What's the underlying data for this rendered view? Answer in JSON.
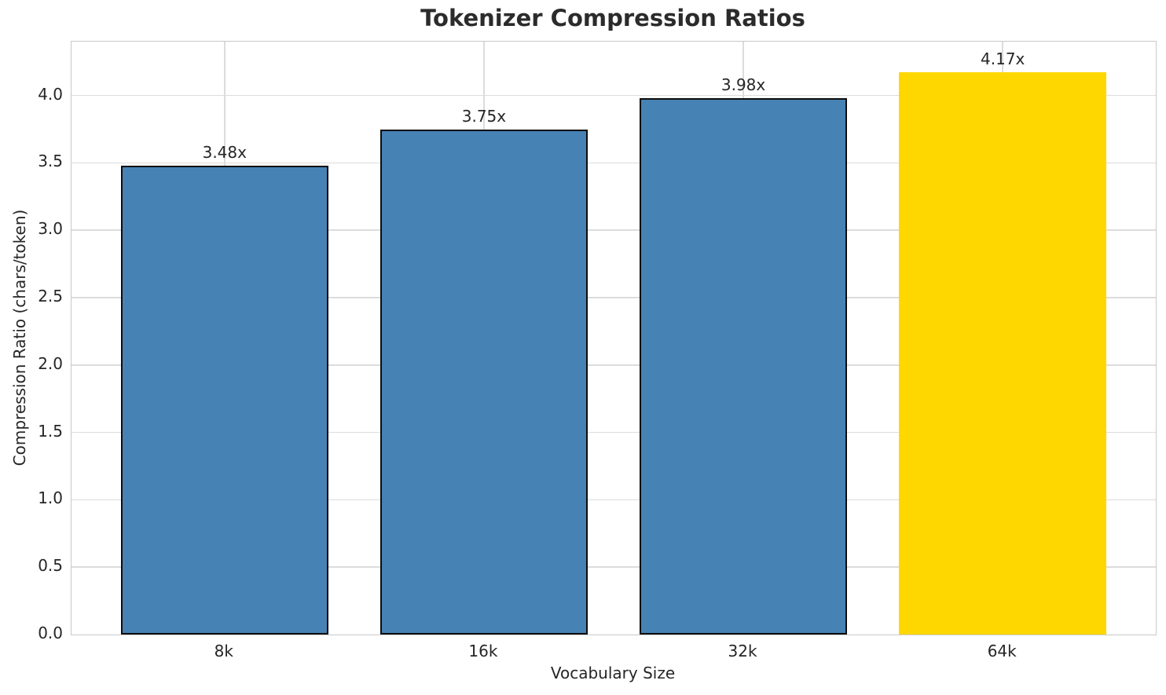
{
  "chart_data": {
    "type": "bar",
    "title": "Tokenizer Compression Ratios",
    "xlabel": "Vocabulary Size",
    "ylabel": "Compression Ratio (chars/token)",
    "categories": [
      "8k",
      "16k",
      "32k",
      "64k"
    ],
    "values": [
      3.48,
      3.75,
      3.98,
      4.17
    ],
    "value_labels": [
      "3.48x",
      "3.75x",
      "3.98x",
      "4.17x"
    ],
    "bar_colors": [
      "#4682b4",
      "#4682b4",
      "#4682b4",
      "#ffd700"
    ],
    "bar_edge_colors": [
      "#0d0d0d",
      "#0d0d0d",
      "#0d0d0d",
      "none"
    ],
    "yticks": [
      0.0,
      0.5,
      1.0,
      1.5,
      2.0,
      2.5,
      3.0,
      3.5,
      4.0
    ],
    "ytick_labels": [
      "0.0",
      "0.5",
      "1.0",
      "1.5",
      "2.0",
      "2.5",
      "3.0",
      "3.5",
      "4.0"
    ],
    "ylim": [
      0,
      4.4
    ],
    "xlim": [
      -0.59,
      3.59
    ],
    "bar_width": 0.8,
    "grid": true,
    "legend": "none",
    "colors": {
      "bar_default": "#4682b4",
      "bar_highlight": "#ffd700",
      "bar_edge": "#0d0d0d",
      "grid": "#dcdcdc",
      "spine": "#c9c9c9",
      "text": "#262626",
      "title": "#2b2b2b",
      "background": "#ffffff"
    }
  }
}
